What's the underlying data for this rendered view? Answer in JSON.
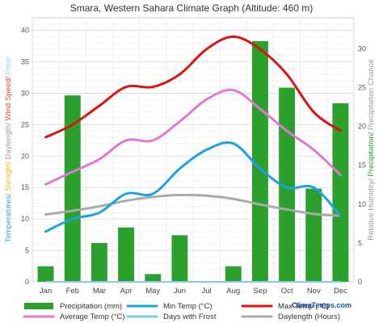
{
  "chart_data": {
    "type": "bar",
    "title": "Smara, Western Sahara Climate Graph (Altitude: 460 m)",
    "categories": [
      "Jan",
      "Feb",
      "Mar",
      "Apr",
      "May",
      "Jun",
      "Jul",
      "Aug",
      "Sep",
      "Oct",
      "Nov",
      "Dec"
    ],
    "left_axis": {
      "ylim": [
        0,
        42
      ],
      "ticks": [
        0,
        5,
        10,
        15,
        20,
        25,
        30,
        35,
        40
      ],
      "label_parts": [
        {
          "text": "Temperatures/ ",
          "color": "#33a6dd"
        },
        {
          "text": "Sunlight/ ",
          "color": "#f2b21c"
        },
        {
          "text": "Daylength/ ",
          "color": "#9a9a9a"
        },
        {
          "text": "Wind Speed/ ",
          "color": "#e8472f"
        },
        {
          "text": "Frost",
          "color": "#8fd0ee"
        }
      ]
    },
    "right_axis": {
      "ylim": [
        0,
        34
      ],
      "ticks": [
        0,
        5,
        10,
        15,
        20,
        25,
        30
      ],
      "label_parts": [
        {
          "text": "Relative Humidity/ ",
          "color": "#9a9a9a"
        },
        {
          "text": "Precipitation/ ",
          "color": "#2ca02c"
        },
        {
          "text": "Precipitation Chance",
          "color": "#9a9a9a"
        }
      ]
    },
    "series": [
      {
        "name": "Precipitation (mm)",
        "kind": "bar",
        "axis": "right",
        "color": "#2ca02c",
        "values": [
          2,
          24,
          5,
          7,
          1,
          6,
          0,
          2,
          31,
          25,
          12,
          23
        ]
      },
      {
        "name": "Min Temp (°C)",
        "kind": "line",
        "axis": "left",
        "color": "#1aa3e0",
        "values": [
          8,
          10,
          11,
          14,
          14,
          18,
          21,
          22,
          18,
          15,
          15,
          10.5
        ]
      },
      {
        "name": "Max Temp (°C)",
        "kind": "line",
        "axis": "left",
        "color": "#dd1111",
        "values": [
          23,
          25,
          28,
          31,
          31,
          33,
          37,
          39,
          37,
          33,
          27,
          24
        ]
      },
      {
        "name": "Average Temp (°C)",
        "kind": "line",
        "axis": "left",
        "color": "#e377d4",
        "values": [
          15.5,
          17.5,
          19.5,
          22.5,
          22.5,
          25.5,
          29,
          30.5,
          27.5,
          24,
          21,
          17
        ]
      },
      {
        "name": "Days with Frost",
        "kind": "line",
        "axis": "left",
        "color": "#80cbe8",
        "values": [
          0,
          0,
          0,
          0,
          0,
          0,
          0,
          0,
          0,
          0,
          0,
          0
        ]
      },
      {
        "name": "Daylength (Hours)",
        "kind": "line",
        "axis": "left",
        "color": "#aaaaaa",
        "values": [
          10.7,
          11.3,
          12,
          12.9,
          13.5,
          13.8,
          13.7,
          13.2,
          12.3,
          11.5,
          10.8,
          10.5
        ]
      }
    ],
    "legend": [
      {
        "label": "Precipitation (mm)",
        "kind": "bar",
        "color": "#2ca02c"
      },
      {
        "label": "Min Temp (°C)",
        "kind": "line",
        "color": "#1aa3e0"
      },
      {
        "label": "Max Temp (°C)",
        "kind": "line",
        "color": "#dd1111"
      },
      {
        "label": "Average Temp (°C)",
        "kind": "line",
        "color": "#e377d4"
      },
      {
        "label": "Days with Frost",
        "kind": "line",
        "color": "#80cbe8"
      },
      {
        "label": "Daylength (Hours)",
        "kind": "line",
        "color": "#aaaaaa"
      }
    ],
    "legend_position": "bottom",
    "grid": true,
    "watermark": "ClimaTemps.com"
  }
}
